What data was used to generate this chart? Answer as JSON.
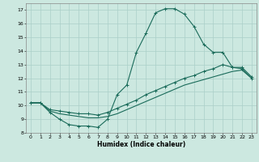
{
  "xlabel": "Humidex (Indice chaleur)",
  "background_color": "#cce8e0",
  "grid_color": "#aacfc8",
  "line_color": "#1a6b5a",
  "xlim": [
    -0.5,
    23.5
  ],
  "ylim": [
    8,
    17.5
  ],
  "xticks": [
    0,
    1,
    2,
    3,
    4,
    5,
    6,
    7,
    8,
    9,
    10,
    11,
    12,
    13,
    14,
    15,
    16,
    17,
    18,
    19,
    20,
    21,
    22,
    23
  ],
  "yticks": [
    8,
    9,
    10,
    11,
    12,
    13,
    14,
    15,
    16,
    17
  ],
  "line1_x": [
    0,
    1,
    2,
    3,
    4,
    5,
    6,
    7,
    8,
    9,
    10,
    11,
    12,
    13,
    14,
    15,
    16,
    17,
    18,
    19,
    20,
    21,
    22,
    23
  ],
  "line1_y": [
    10.2,
    10.2,
    9.5,
    9.0,
    8.6,
    8.5,
    8.5,
    8.4,
    9.0,
    10.8,
    11.5,
    13.9,
    15.3,
    16.8,
    17.1,
    17.1,
    16.7,
    15.8,
    14.5,
    13.9,
    13.9,
    12.8,
    12.7,
    12.0
  ],
  "line2_x": [
    0,
    1,
    2,
    3,
    4,
    5,
    6,
    7,
    8,
    9,
    10,
    11,
    12,
    13,
    14,
    15,
    16,
    17,
    18,
    19,
    20,
    21,
    22,
    23
  ],
  "line2_y": [
    10.2,
    10.2,
    9.6,
    9.4,
    9.3,
    9.2,
    9.1,
    9.1,
    9.2,
    9.4,
    9.7,
    10.0,
    10.3,
    10.6,
    10.9,
    11.2,
    11.5,
    11.7,
    11.9,
    12.1,
    12.3,
    12.5,
    12.6,
    12.0
  ],
  "line3_x": [
    0,
    1,
    2,
    3,
    4,
    5,
    6,
    7,
    8,
    9,
    10,
    11,
    12,
    13,
    14,
    15,
    16,
    17,
    18,
    19,
    20,
    21,
    22,
    23
  ],
  "line3_y": [
    10.2,
    10.2,
    9.7,
    9.6,
    9.5,
    9.4,
    9.4,
    9.3,
    9.5,
    9.8,
    10.1,
    10.4,
    10.8,
    11.1,
    11.4,
    11.7,
    12.0,
    12.2,
    12.5,
    12.7,
    13.0,
    12.8,
    12.8,
    12.1
  ]
}
